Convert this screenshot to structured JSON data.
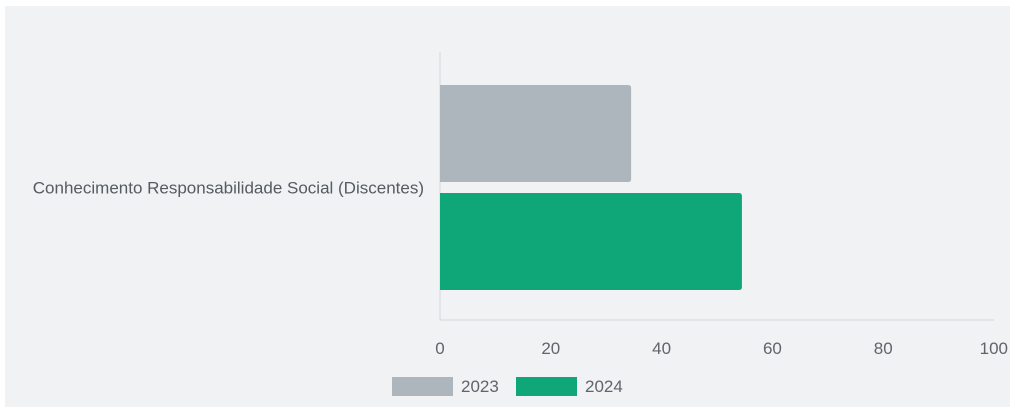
{
  "chart_data": {
    "type": "bar",
    "orientation": "horizontal",
    "categories": [
      "Conhecimento Responsabilidade Social (Discentes)"
    ],
    "series": [
      {
        "name": "2023",
        "values": [
          34.5
        ],
        "color": "#adb5bd"
      },
      {
        "name": "2024",
        "values": [
          54.5
        ],
        "color": "#0fa777"
      }
    ],
    "xlim": [
      0,
      100
    ],
    "xticks": [
      0,
      20,
      40,
      60,
      80,
      100
    ],
    "grid": false,
    "legend": "bottom-center",
    "title": "",
    "xlabel": "",
    "ylabel": ""
  }
}
